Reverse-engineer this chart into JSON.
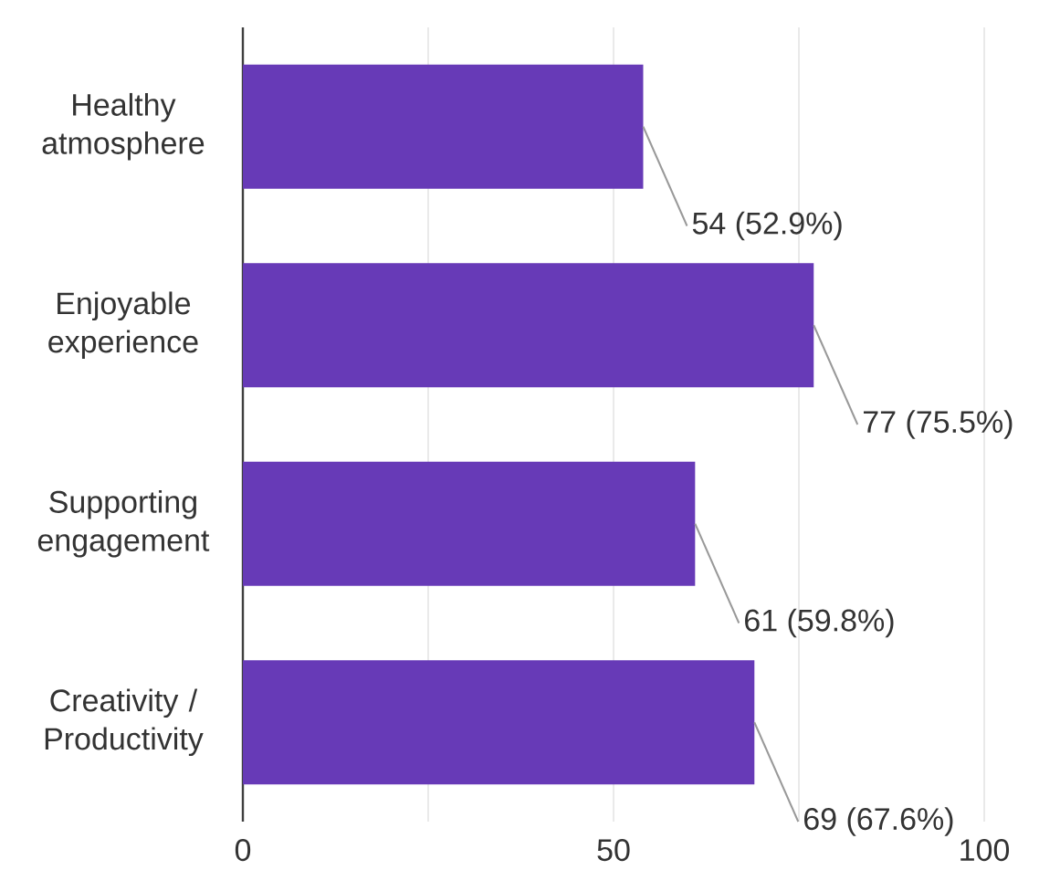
{
  "chart_data": {
    "type": "bar",
    "orientation": "horizontal",
    "categories": [
      "Healthy atmosphere",
      "Enjoyable experience",
      "Supporting engagement",
      "Creativity / Productivity"
    ],
    "values": [
      54,
      77,
      61,
      69
    ],
    "value_labels": [
      "54 (52.9%)",
      "77 (75.5%)",
      "61 (59.8%)",
      "69 (67.6%)"
    ],
    "color": "#673ab7",
    "xlim": [
      0,
      100
    ],
    "xticks": [
      0,
      {
        "value": 25,
        "label": null
      },
      50,
      {
        "value": 75,
        "label": null
      },
      100
    ],
    "grid": "x"
  }
}
